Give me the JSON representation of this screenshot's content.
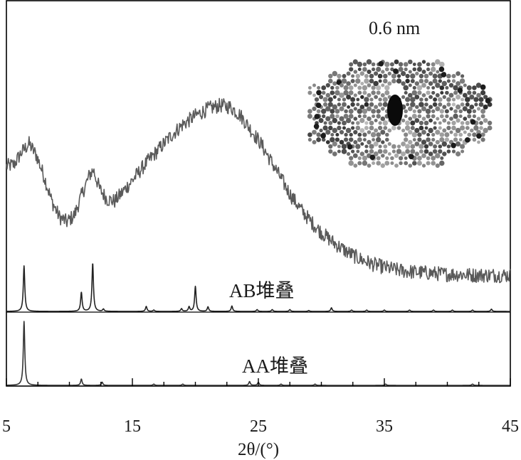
{
  "chart_data": {
    "type": "line",
    "title": "",
    "xlabel": "2θ/(°)",
    "ylabel": "",
    "xlim": [
      5,
      45
    ],
    "xticks": [
      5,
      15,
      25,
      35,
      45
    ],
    "grid": false,
    "colors": {
      "experimental": "#5a5a5a",
      "simulated": "#222222",
      "axis": "#000000"
    },
    "annotation": "0.6 nm",
    "series": [
      {
        "key": "experimental",
        "points": [
          [
            5,
            0.78
          ],
          [
            5.6,
            0.79
          ],
          [
            6.2,
            0.86
          ],
          [
            6.8,
            0.91
          ],
          [
            7.4,
            0.84
          ],
          [
            8.0,
            0.72
          ],
          [
            8.6,
            0.58
          ],
          [
            9.2,
            0.49
          ],
          [
            9.8,
            0.46
          ],
          [
            10.4,
            0.5
          ],
          [
            11.0,
            0.62
          ],
          [
            11.6,
            0.73
          ],
          [
            11.9,
            0.76
          ],
          [
            12.4,
            0.65
          ],
          [
            13.0,
            0.59
          ],
          [
            13.6,
            0.58
          ],
          [
            14.2,
            0.63
          ],
          [
            15.0,
            0.7
          ],
          [
            16.0,
            0.79
          ],
          [
            17.0,
            0.87
          ],
          [
            18.0,
            0.95
          ],
          [
            19.0,
            1.02
          ],
          [
            20.0,
            1.07
          ],
          [
            21.0,
            1.11
          ],
          [
            22.0,
            1.13
          ],
          [
            22.8,
            1.12
          ],
          [
            23.6,
            1.07
          ],
          [
            24.4,
            0.99
          ],
          [
            25.2,
            0.91
          ],
          [
            26.0,
            0.81
          ],
          [
            26.8,
            0.71
          ],
          [
            27.6,
            0.61
          ],
          [
            28.4,
            0.53
          ],
          [
            29.2,
            0.46
          ],
          [
            30.0,
            0.4
          ],
          [
            31.0,
            0.34
          ],
          [
            32.0,
            0.29
          ],
          [
            33.0,
            0.25
          ],
          [
            34.0,
            0.22
          ],
          [
            35.0,
            0.2
          ],
          [
            36.0,
            0.185
          ],
          [
            37.0,
            0.175
          ],
          [
            38.0,
            0.17
          ],
          [
            39.0,
            0.165
          ],
          [
            40.0,
            0.16
          ],
          [
            41.0,
            0.16
          ],
          [
            42.0,
            0.155
          ],
          [
            43.0,
            0.155
          ],
          [
            44.0,
            0.155
          ],
          [
            45.0,
            0.155
          ]
        ]
      },
      {
        "key": "AB",
        "label": "AB堆叠",
        "peaks": [
          [
            6.4,
            1.0
          ],
          [
            10.95,
            0.42
          ],
          [
            11.85,
            1.06
          ],
          [
            12.7,
            0.05
          ],
          [
            16.1,
            0.11
          ],
          [
            16.7,
            0.03
          ],
          [
            18.9,
            0.06
          ],
          [
            19.5,
            0.1
          ],
          [
            20.0,
            0.55
          ],
          [
            21.0,
            0.1
          ],
          [
            22.9,
            0.12
          ],
          [
            24.9,
            0.04
          ],
          [
            26.1,
            0.04
          ],
          [
            27.5,
            0.04
          ],
          [
            29.0,
            0.02
          ],
          [
            30.8,
            0.08
          ],
          [
            32.4,
            0.03
          ],
          [
            33.6,
            0.03
          ],
          [
            35.0,
            0.03
          ],
          [
            37.0,
            0.03
          ],
          [
            38.9,
            0.03
          ],
          [
            40.4,
            0.03
          ],
          [
            42.0,
            0.03
          ],
          [
            43.5,
            0.05
          ]
        ]
      },
      {
        "key": "AA",
        "label": "AA堆叠",
        "peaks": [
          [
            6.4,
            1.0
          ],
          [
            10.95,
            0.1
          ],
          [
            12.6,
            0.05
          ],
          [
            16.7,
            0.02
          ],
          [
            19.0,
            0.02
          ],
          [
            24.3,
            0.06
          ],
          [
            25.0,
            0.05
          ],
          [
            26.8,
            0.02
          ],
          [
            29.5,
            0.02
          ],
          [
            35.1,
            0.02
          ],
          [
            42.0,
            0.02
          ]
        ]
      }
    ]
  }
}
